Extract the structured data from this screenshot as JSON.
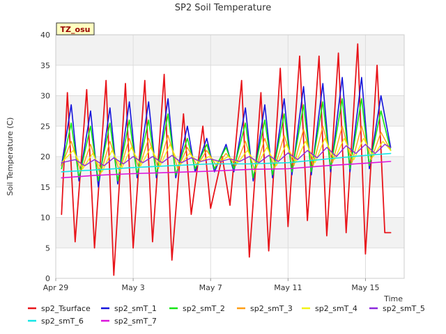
{
  "chart_data": {
    "type": "line",
    "title": "SP2 Soil Temperature",
    "xlabel": "Time",
    "ylabel": "Soil Temperature (C)",
    "badge": "TZ_osu",
    "ylim": [
      0,
      40
    ],
    "yticks": [
      0,
      5,
      10,
      15,
      20,
      25,
      30,
      35,
      40
    ],
    "xlim_days": [
      0,
      18
    ],
    "xticks": [
      {
        "day": 0,
        "label": "Apr 29"
      },
      {
        "day": 4,
        "label": "May 3"
      },
      {
        "day": 8,
        "label": "May 7"
      },
      {
        "day": 12,
        "label": "May 11"
      },
      {
        "day": 16,
        "label": "May 15"
      }
    ],
    "colors": {
      "sp2_Tsurface": "#e8141a",
      "sp2_smT_1": "#1414dc",
      "sp2_smT_2": "#14e614",
      "sp2_smT_3": "#ff9e14",
      "sp2_smT_4": "#f2f214",
      "sp2_smT_5": "#8c28dc",
      "sp2_smT_6": "#14e6e6",
      "sp2_smT_7": "#dc14dc"
    },
    "series": [
      {
        "name": "sp2_Tsurface",
        "color": "#e8141a",
        "width": 1.8,
        "days": [
          0.3,
          0.6,
          1.0,
          1.6,
          2.0,
          2.6,
          3.0,
          3.6,
          4.0,
          4.6,
          5.0,
          5.6,
          6.0,
          6.6,
          7.0,
          7.6,
          8.0,
          8.6,
          9.0,
          9.6,
          10.0,
          10.6,
          11.0,
          11.6,
          12.0,
          12.6,
          13.0,
          13.6,
          14.0,
          14.6,
          15.0,
          15.6,
          16.0,
          16.6,
          17.0,
          17.3
        ],
        "values": [
          10.5,
          30.5,
          6.0,
          31.0,
          5.0,
          32.5,
          0.5,
          32.0,
          5.0,
          32.5,
          6.0,
          33.5,
          3.0,
          27.0,
          10.5,
          25.0,
          11.5,
          20.0,
          12.0,
          32.5,
          3.5,
          30.5,
          4.5,
          34.5,
          8.5,
          36.5,
          9.5,
          36.5,
          7.0,
          37.0,
          7.5,
          38.5,
          4.0,
          35.0,
          7.5,
          7.5
        ]
      },
      {
        "name": "sp2_smT_1",
        "color": "#1414dc",
        "width": 1.6,
        "days": [
          0.3,
          0.8,
          1.2,
          1.8,
          2.2,
          2.8,
          3.2,
          3.8,
          4.2,
          4.8,
          5.2,
          5.8,
          6.2,
          6.8,
          7.2,
          7.8,
          8.2,
          8.8,
          9.2,
          9.8,
          10.2,
          10.8,
          11.2,
          11.8,
          12.2,
          12.8,
          13.2,
          13.8,
          14.2,
          14.8,
          15.2,
          15.8,
          16.2,
          16.8,
          17.3
        ],
        "values": [
          18.5,
          28.5,
          16.0,
          27.5,
          15.0,
          28.0,
          15.5,
          29.0,
          16.5,
          29.0,
          16.5,
          29.5,
          16.5,
          25.0,
          17.5,
          23.0,
          17.5,
          22.0,
          17.5,
          28.0,
          16.0,
          28.5,
          16.5,
          29.5,
          17.0,
          31.5,
          17.0,
          32.0,
          17.5,
          33.0,
          17.5,
          33.0,
          18.0,
          30.0,
          21.5
        ]
      },
      {
        "name": "sp2_smT_2",
        "color": "#14e614",
        "width": 1.6,
        "days": [
          0.3,
          0.8,
          1.2,
          1.8,
          2.2,
          2.8,
          3.2,
          3.8,
          4.2,
          4.8,
          5.2,
          5.8,
          6.2,
          6.8,
          7.2,
          7.8,
          8.2,
          8.8,
          9.2,
          9.8,
          10.2,
          10.8,
          11.2,
          11.8,
          12.2,
          12.8,
          13.2,
          13.8,
          14.2,
          14.8,
          15.2,
          15.8,
          16.2,
          16.8,
          17.3
        ],
        "values": [
          18.0,
          25.5,
          16.5,
          25.0,
          16.0,
          25.5,
          16.0,
          26.0,
          17.0,
          26.0,
          17.0,
          27.0,
          17.0,
          23.0,
          18.0,
          22.0,
          18.0,
          21.5,
          18.0,
          25.5,
          16.5,
          26.0,
          17.0,
          27.0,
          17.5,
          28.5,
          17.5,
          29.0,
          18.0,
          29.5,
          18.0,
          29.5,
          18.5,
          27.5,
          21.0
        ]
      },
      {
        "name": "sp2_smT_3",
        "color": "#ff9e14",
        "width": 1.4,
        "days": [
          0.3,
          0.8,
          1.3,
          1.8,
          2.3,
          2.8,
          3.3,
          3.8,
          4.3,
          4.8,
          5.3,
          5.8,
          6.3,
          6.8,
          7.3,
          7.8,
          8.3,
          8.8,
          9.3,
          9.8,
          10.3,
          10.8,
          11.3,
          11.8,
          12.3,
          12.8,
          13.3,
          13.8,
          14.3,
          14.8,
          15.3,
          15.8,
          16.3,
          16.8,
          17.3
        ],
        "values": [
          18.5,
          22.5,
          17.5,
          22.0,
          17.0,
          22.5,
          17.5,
          23.0,
          18.0,
          23.0,
          18.0,
          23.5,
          18.0,
          21.5,
          18.5,
          21.0,
          18.5,
          20.5,
          18.5,
          22.5,
          17.5,
          23.0,
          18.0,
          23.5,
          18.5,
          24.5,
          18.5,
          25.0,
          19.0,
          25.0,
          19.0,
          25.0,
          19.5,
          24.0,
          21.0
        ]
      },
      {
        "name": "sp2_smT_4",
        "color": "#f2f214",
        "width": 1.4,
        "days": [
          0.3,
          0.9,
          1.4,
          1.9,
          2.4,
          2.9,
          3.4,
          3.9,
          4.4,
          4.9,
          5.4,
          5.9,
          6.4,
          6.9,
          7.4,
          7.9,
          8.4,
          8.9,
          9.4,
          9.9,
          10.4,
          10.9,
          11.4,
          11.9,
          12.4,
          12.9,
          13.4,
          13.9,
          14.4,
          14.9,
          15.4,
          15.9,
          16.4,
          16.9,
          17.3
        ],
        "values": [
          19.0,
          21.0,
          18.0,
          20.5,
          17.5,
          21.0,
          18.0,
          21.5,
          18.5,
          21.5,
          18.5,
          22.0,
          18.5,
          20.5,
          19.0,
          20.0,
          19.0,
          20.0,
          19.0,
          21.0,
          18.5,
          21.5,
          18.5,
          22.0,
          19.0,
          22.5,
          19.0,
          23.0,
          19.5,
          23.0,
          19.5,
          23.0,
          20.0,
          22.5,
          21.0
        ]
      },
      {
        "name": "sp2_smT_5",
        "color": "#8c28dc",
        "width": 1.4,
        "days": [
          0.3,
          1.0,
          1.5,
          2.0,
          2.5,
          3.0,
          3.5,
          4.0,
          4.5,
          5.0,
          5.5,
          6.0,
          6.5,
          7.0,
          7.5,
          8.0,
          8.5,
          9.0,
          9.5,
          10.0,
          10.5,
          11.0,
          11.5,
          12.0,
          12.5,
          13.0,
          13.5,
          14.0,
          14.5,
          15.0,
          15.5,
          16.0,
          16.5,
          17.0,
          17.3
        ],
        "values": [
          19.0,
          19.5,
          18.5,
          19.5,
          18.5,
          19.8,
          18.8,
          20.0,
          19.0,
          20.0,
          19.0,
          20.2,
          19.0,
          19.8,
          19.2,
          19.6,
          19.2,
          19.6,
          19.2,
          20.0,
          19.0,
          20.2,
          19.2,
          20.6,
          19.5,
          21.0,
          19.8,
          21.5,
          20.0,
          21.8,
          20.5,
          22.0,
          20.5,
          22.0,
          21.5
        ]
      },
      {
        "name": "sp2_smT_6",
        "color": "#14e6e6",
        "width": 1.6,
        "days": [
          0.3,
          2.0,
          4.0,
          6.0,
          8.0,
          10.0,
          12.0,
          14.0,
          16.0,
          17.3
        ],
        "values": [
          17.5,
          17.8,
          18.2,
          18.5,
          18.8,
          18.8,
          19.0,
          19.6,
          20.2,
          20.5
        ]
      },
      {
        "name": "sp2_smT_7",
        "color": "#dc14dc",
        "width": 1.6,
        "days": [
          0.3,
          2.0,
          4.0,
          6.0,
          8.0,
          10.0,
          12.0,
          14.0,
          16.0,
          17.3
        ],
        "values": [
          16.5,
          16.9,
          17.2,
          17.4,
          17.6,
          17.9,
          18.0,
          18.5,
          18.9,
          19.2
        ]
      }
    ]
  }
}
